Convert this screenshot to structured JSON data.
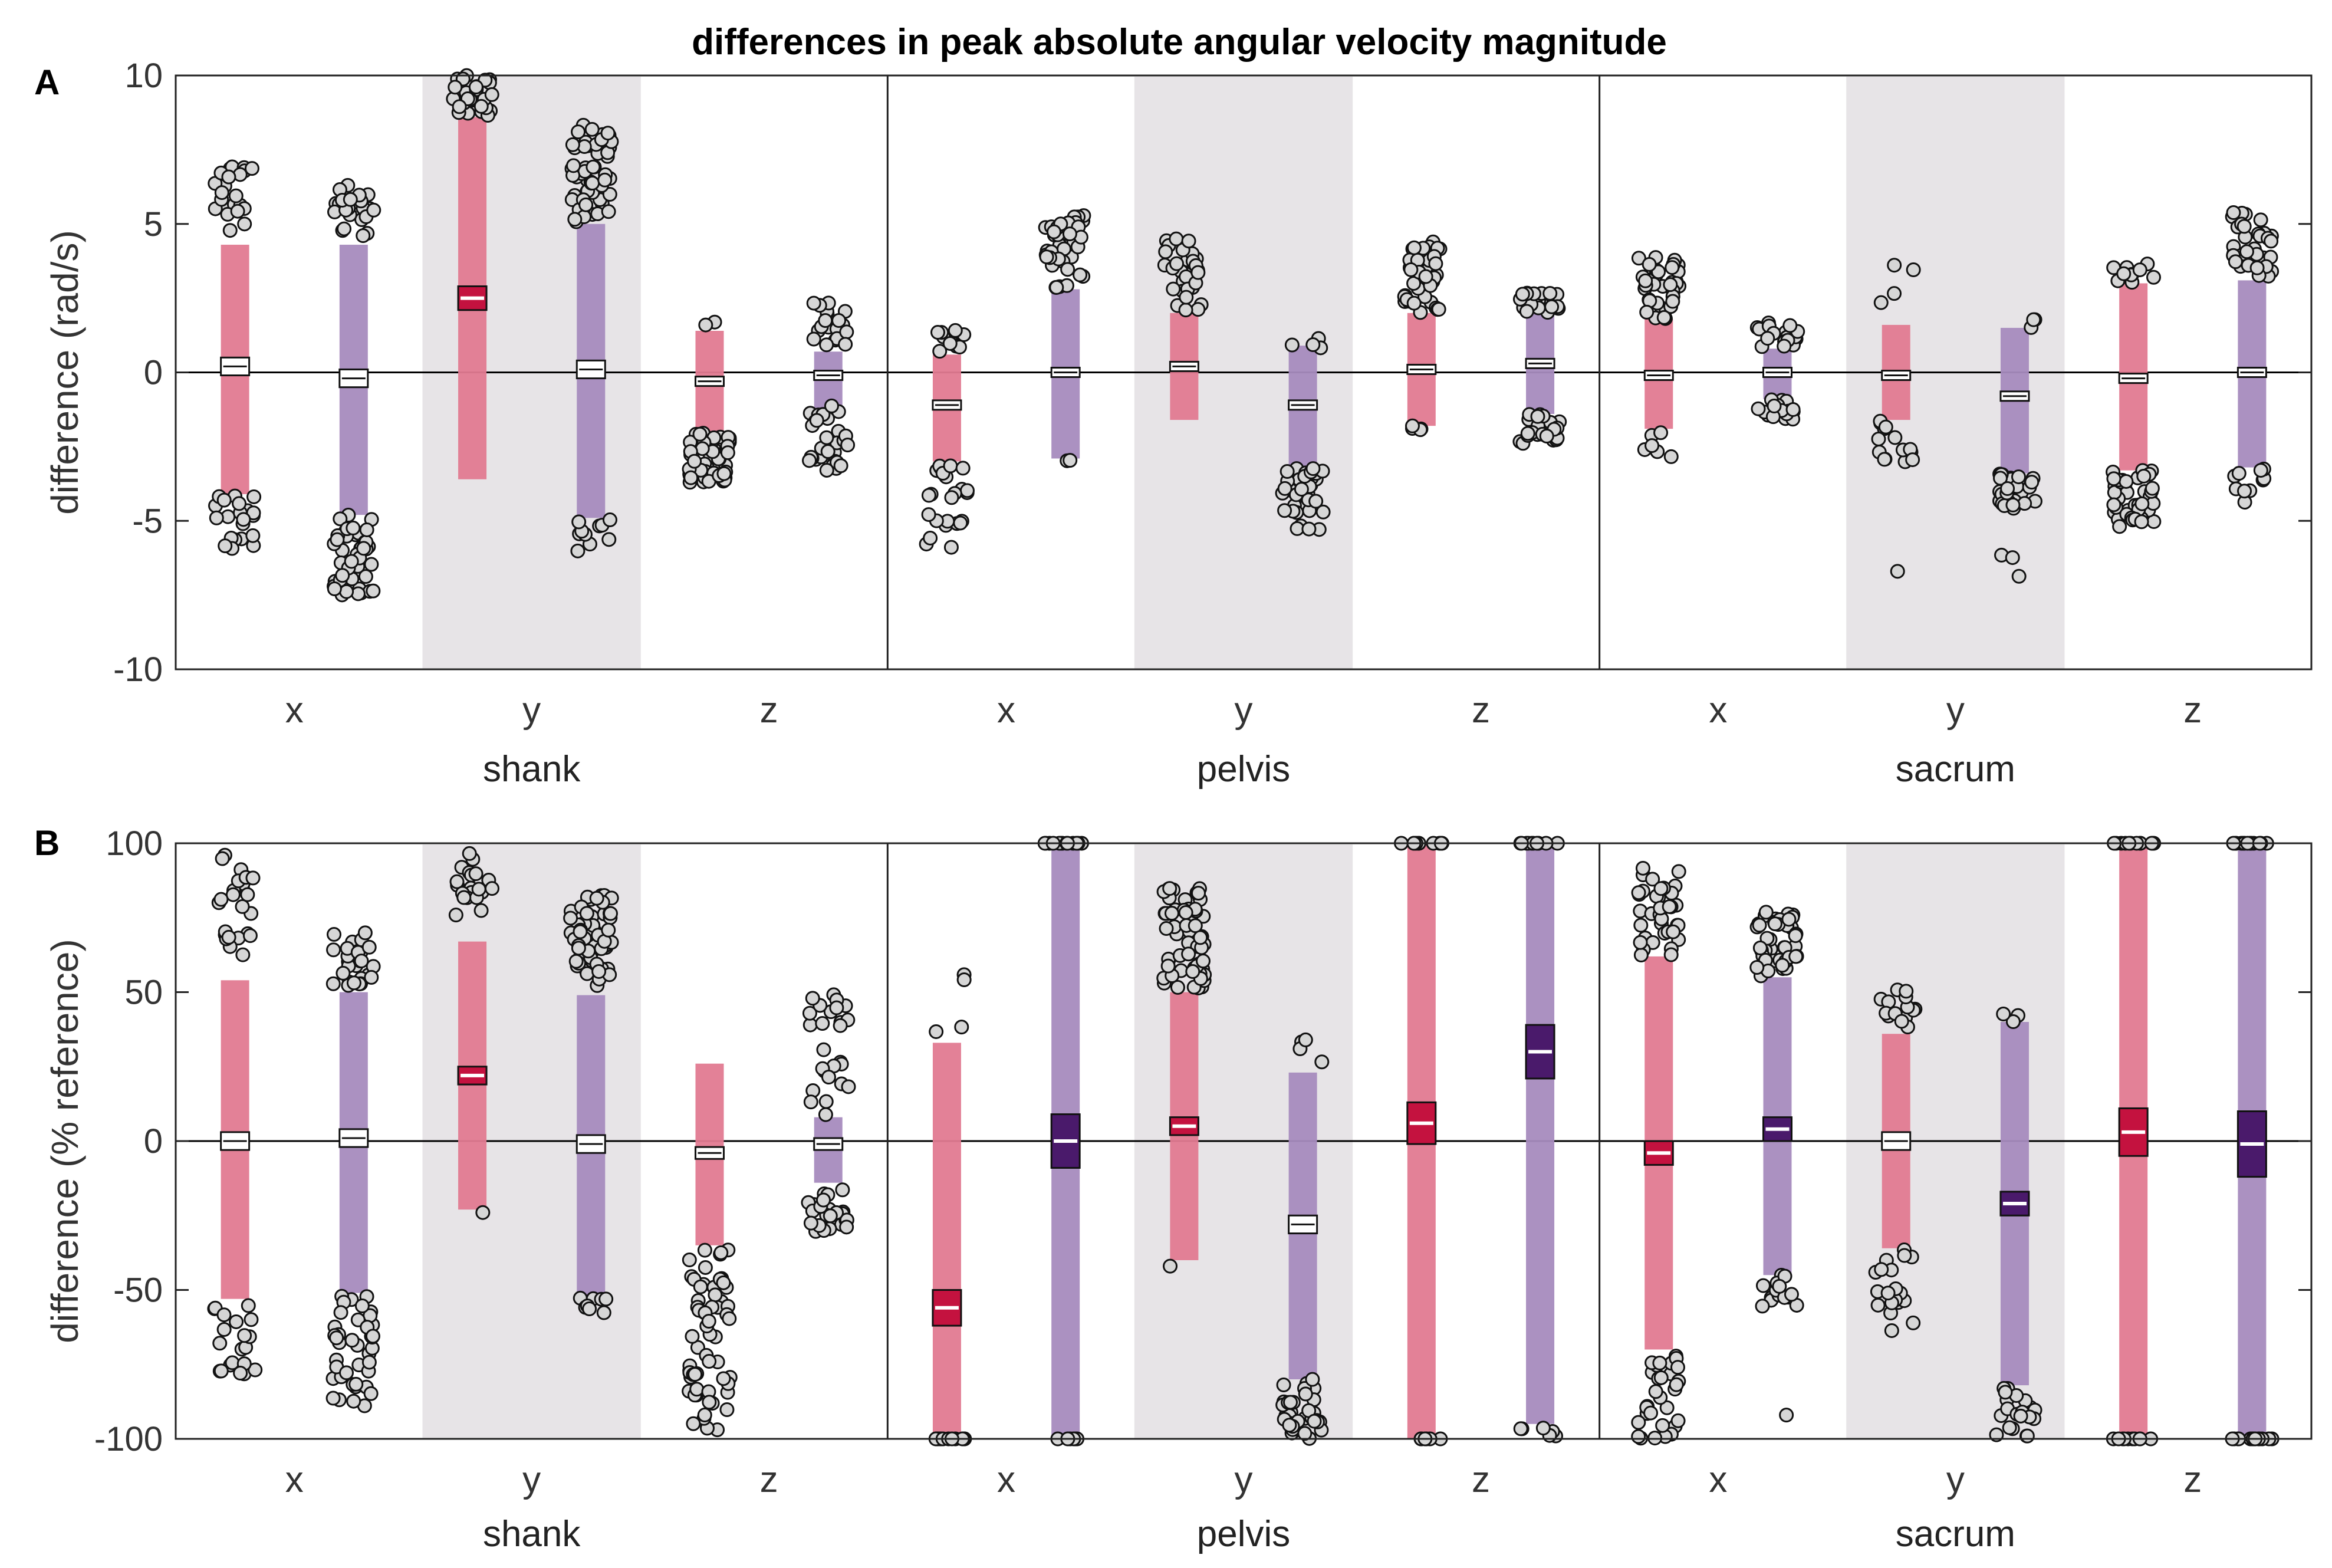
{
  "title": "differences in peak absolute angular velocity magnitude",
  "colors": {
    "pink_bar": "#E27A91",
    "purple_bar": "#A68BBE",
    "crimson_box": "#C4123F",
    "violet_box": "#4A1A6B",
    "shade": "#E7E4E7",
    "dot_fill": "#D6D6D6"
  },
  "chart_data": [
    {
      "type": "scatter",
      "panel": "A",
      "ylabel": "difference (rad/s)",
      "ylim": [
        -10,
        10
      ],
      "yticks": [
        -10,
        -5,
        0,
        5,
        10
      ],
      "yticklabels": [
        "-10",
        "-5",
        "0",
        "5",
        "10"
      ],
      "groups": [
        "shank",
        "pelvis",
        "sacrum"
      ],
      "axes": [
        "x",
        "y",
        "z"
      ],
      "shaded_axis": "y",
      "series": [
        {
          "group": "shank",
          "axis": "x",
          "color": "pink",
          "mean": 0.2,
          "ci": 0.3,
          "bar": [
            -4.1,
            4.3
          ],
          "box_style": "open",
          "clusters": [
            {
              "lo": 4.7,
              "hi": 7.0,
              "n": 22
            },
            {
              "lo": -6.0,
              "hi": -4.1,
              "n": 22
            }
          ]
        },
        {
          "group": "shank",
          "axis": "x",
          "color": "purple",
          "mean": -0.2,
          "ci": 0.3,
          "bar": [
            -4.8,
            4.3
          ],
          "box_style": "open",
          "clusters": [
            {
              "lo": 4.6,
              "hi": 6.3,
              "n": 24
            },
            {
              "lo": -7.5,
              "hi": -4.8,
              "n": 50
            }
          ]
        },
        {
          "group": "shank",
          "axis": "y",
          "color": "pink",
          "mean": 2.5,
          "ci": 0.4,
          "bar": [
            -3.6,
            8.6
          ],
          "box_style": "filled",
          "clusters": [
            {
              "lo": 8.6,
              "hi": 10.0,
              "n": 30
            }
          ]
        },
        {
          "group": "shank",
          "axis": "y",
          "color": "purple",
          "mean": 0.1,
          "ci": 0.3,
          "bar": [
            -4.9,
            5.0
          ],
          "box_style": "open",
          "clusters": [
            {
              "lo": 5.0,
              "hi": 8.4,
              "n": 55
            },
            {
              "lo": -6.2,
              "hi": -4.9,
              "n": 10
            }
          ]
        },
        {
          "group": "shank",
          "axis": "z",
          "color": "pink",
          "mean": -0.3,
          "ci": 0.15,
          "bar": [
            -2.0,
            1.4
          ],
          "box_style": "open",
          "clusters": [
            {
              "lo": 1.5,
              "hi": 1.9,
              "n": 2
            },
            {
              "lo": -3.8,
              "hi": -2.0,
              "n": 60
            }
          ]
        },
        {
          "group": "shank",
          "axis": "z",
          "color": "purple",
          "mean": -0.1,
          "ci": 0.15,
          "bar": [
            -1.2,
            0.7
          ],
          "box_style": "open",
          "clusters": [
            {
              "lo": 0.7,
              "hi": 2.4,
              "n": 20
            },
            {
              "lo": -3.3,
              "hi": -1.1,
              "n": 30
            }
          ]
        },
        {
          "group": "pelvis",
          "axis": "x",
          "color": "pink",
          "mean": -1.1,
          "ci": 0.15,
          "bar": [
            -3.0,
            0.6
          ],
          "box_style": "open",
          "clusters": [
            {
              "lo": 0.7,
              "hi": 2.0,
              "n": 10
            },
            {
              "lo": -6.0,
              "hi": -3.0,
              "n": 24
            }
          ]
        },
        {
          "group": "pelvis",
          "axis": "x",
          "color": "purple",
          "mean": 0.0,
          "ci": 0.15,
          "bar": [
            -2.9,
            2.8
          ],
          "box_style": "open",
          "clusters": [
            {
              "lo": 2.8,
              "hi": 5.3,
              "n": 42
            },
            {
              "lo": -3.0,
              "hi": -2.9,
              "n": 2
            }
          ]
        },
        {
          "group": "pelvis",
          "axis": "y",
          "color": "pink",
          "mean": 0.2,
          "ci": 0.15,
          "bar": [
            -1.6,
            2.0
          ],
          "box_style": "open",
          "clusters": [
            {
              "lo": 2.0,
              "hi": 4.7,
              "n": 30
            }
          ]
        },
        {
          "group": "pelvis",
          "axis": "y",
          "color": "purple",
          "mean": -1.1,
          "ci": 0.15,
          "bar": [
            -3.2,
            0.9
          ],
          "box_style": "open",
          "clusters": [
            {
              "lo": 0.8,
              "hi": 1.2,
              "n": 4
            },
            {
              "lo": -5.5,
              "hi": -3.2,
              "n": 38
            }
          ]
        },
        {
          "group": "pelvis",
          "axis": "z",
          "color": "pink",
          "mean": 0.1,
          "ci": 0.15,
          "bar": [
            -1.8,
            2.0
          ],
          "box_style": "open",
          "clusters": [
            {
              "lo": 2.0,
              "hi": 4.4,
              "n": 40
            },
            {
              "lo": -2.1,
              "hi": -1.8,
              "n": 4
            }
          ]
        },
        {
          "group": "pelvis",
          "axis": "z",
          "color": "purple",
          "mean": 0.3,
          "ci": 0.15,
          "bar": [
            -1.4,
            2.0
          ],
          "box_style": "open",
          "clusters": [
            {
              "lo": 2.0,
              "hi": 2.7,
              "n": 24
            },
            {
              "lo": -2.6,
              "hi": -1.4,
              "n": 26
            }
          ]
        },
        {
          "group": "sacrum",
          "axis": "x",
          "color": "pink",
          "mean": -0.1,
          "ci": 0.15,
          "bar": [
            -1.9,
            1.8
          ],
          "box_style": "open",
          "clusters": [
            {
              "lo": 1.8,
              "hi": 3.9,
              "n": 36
            },
            {
              "lo": -3.2,
              "hi": -1.9,
              "n": 6
            }
          ]
        },
        {
          "group": "sacrum",
          "axis": "x",
          "color": "purple",
          "mean": 0.0,
          "ci": 0.15,
          "bar": [
            -0.9,
            0.8
          ],
          "box_style": "open",
          "clusters": [
            {
              "lo": 0.8,
              "hi": 1.7,
              "n": 18
            },
            {
              "lo": -1.6,
              "hi": -0.9,
              "n": 22
            }
          ]
        },
        {
          "group": "sacrum",
          "axis": "y",
          "color": "pink",
          "mean": -0.1,
          "ci": 0.15,
          "bar": [
            -1.6,
            1.6
          ],
          "box_style": "open",
          "clusters": [
            {
              "lo": 1.8,
              "hi": 3.8,
              "n": 4
            },
            {
              "lo": -3.2,
              "hi": -1.6,
              "n": 14
            },
            {
              "lo": -6.7,
              "hi": -6.7,
              "n": 1
            }
          ]
        },
        {
          "group": "sacrum",
          "axis": "y",
          "color": "purple",
          "mean": -0.8,
          "ci": 0.15,
          "bar": [
            -3.4,
            1.5
          ],
          "box_style": "open",
          "clusters": [
            {
              "lo": 1.5,
              "hi": 2.0,
              "n": 4
            },
            {
              "lo": -4.6,
              "hi": -3.4,
              "n": 34
            },
            {
              "lo": -7.4,
              "hi": -5.8,
              "n": 3
            }
          ]
        },
        {
          "group": "sacrum",
          "axis": "z",
          "color": "pink",
          "mean": -0.2,
          "ci": 0.15,
          "bar": [
            -3.3,
            3.0
          ],
          "box_style": "open",
          "clusters": [
            {
              "lo": 3.0,
              "hi": 3.8,
              "n": 10
            },
            {
              "lo": -5.2,
              "hi": -3.3,
              "n": 44
            }
          ]
        },
        {
          "group": "sacrum",
          "axis": "z",
          "color": "purple",
          "mean": 0.0,
          "ci": 0.15,
          "bar": [
            -3.2,
            3.1
          ],
          "box_style": "open",
          "clusters": [
            {
              "lo": 3.2,
              "hi": 5.4,
              "n": 34
            },
            {
              "lo": -4.4,
              "hi": -3.2,
              "n": 10
            }
          ]
        }
      ]
    },
    {
      "type": "scatter",
      "panel": "B",
      "ylabel": "difference (% reference)",
      "ylim": [
        -100,
        100
      ],
      "yticks": [
        -100,
        -50,
        0,
        50,
        100
      ],
      "yticklabels": [
        "-100",
        "-50",
        "0",
        "50",
        "100"
      ],
      "groups": [
        "shank",
        "pelvis",
        "sacrum"
      ],
      "axes": [
        "x",
        "y",
        "z"
      ],
      "shaded_axis": "y",
      "series": [
        {
          "group": "shank",
          "axis": "x",
          "color": "pink",
          "mean": 0,
          "ci": 3,
          "bar": [
            -53,
            54
          ],
          "box_style": "open",
          "clusters": [
            {
              "lo": 55,
              "hi": 96,
              "n": 24
            },
            {
              "lo": -81,
              "hi": -55,
              "n": 20
            }
          ]
        },
        {
          "group": "shank",
          "axis": "x",
          "color": "purple",
          "mean": 1,
          "ci": 3,
          "bar": [
            -51,
            50
          ],
          "box_style": "open",
          "clusters": [
            {
              "lo": 52,
              "hi": 71,
              "n": 28
            },
            {
              "lo": -89,
              "hi": -51,
              "n": 40
            }
          ]
        },
        {
          "group": "shank",
          "axis": "y",
          "color": "pink",
          "mean": 22,
          "ci": 3,
          "bar": [
            -23,
            67
          ],
          "box_style": "filled",
          "clusters": [
            {
              "lo": 68,
              "hi": 98,
              "n": 20
            },
            {
              "lo": -24,
              "hi": -24,
              "n": 1
            }
          ]
        },
        {
          "group": "shank",
          "axis": "y",
          "color": "purple",
          "mean": -1,
          "ci": 3,
          "bar": [
            -52,
            49
          ],
          "box_style": "open",
          "clusters": [
            {
              "lo": 52,
              "hi": 83,
              "n": 60
            },
            {
              "lo": -59,
              "hi": -52,
              "n": 8
            }
          ]
        },
        {
          "group": "shank",
          "axis": "z",
          "color": "pink",
          "mean": -4,
          "ci": 2,
          "bar": [
            -35,
            26
          ],
          "box_style": "open",
          "clusters": [
            {
              "lo": -100,
              "hi": -35,
              "n": 60
            }
          ]
        },
        {
          "group": "shank",
          "axis": "z",
          "color": "purple",
          "mean": -1,
          "ci": 2,
          "bar": [
            -14,
            8
          ],
          "box_style": "open",
          "clusters": [
            {
              "lo": 8,
              "hi": 50,
              "n": 26
            },
            {
              "lo": -31,
              "hi": -14,
              "n": 24
            }
          ]
        },
        {
          "group": "pelvis",
          "axis": "x",
          "color": "pink",
          "mean": -56,
          "ci": 6,
          "bar": [
            -100,
            33
          ],
          "box_style": "filled",
          "clusters": [
            {
              "lo": 36,
              "hi": 56,
              "n": 4
            },
            {
              "lo": -100,
              "hi": -100,
              "n": 14
            }
          ]
        },
        {
          "group": "pelvis",
          "axis": "x",
          "color": "purple",
          "mean": 0,
          "ci": 9,
          "bar": [
            -100,
            100
          ],
          "box_style": "filled",
          "clusters": [
            {
              "lo": 100,
              "hi": 100,
              "n": 14
            },
            {
              "lo": -100,
              "hi": -100,
              "n": 6
            }
          ]
        },
        {
          "group": "pelvis",
          "axis": "y",
          "color": "pink",
          "mean": 5,
          "ci": 3,
          "bar": [
            -40,
            50
          ],
          "box_style": "filled",
          "clusters": [
            {
              "lo": 50,
              "hi": 85,
              "n": 60
            },
            {
              "lo": -42,
              "hi": -42,
              "n": 1
            }
          ]
        },
        {
          "group": "pelvis",
          "axis": "y",
          "color": "purple",
          "mean": -28,
          "ci": 3,
          "bar": [
            -80,
            23
          ],
          "box_style": "open",
          "clusters": [
            {
              "lo": 24,
              "hi": 35,
              "n": 4
            },
            {
              "lo": -100,
              "hi": -80,
              "n": 36
            }
          ]
        },
        {
          "group": "pelvis",
          "axis": "z",
          "color": "pink",
          "mean": 6,
          "ci": 7,
          "bar": [
            -100,
            100
          ],
          "box_style": "filled",
          "clusters": [
            {
              "lo": 100,
              "hi": 100,
              "n": 12
            },
            {
              "lo": -100,
              "hi": -100,
              "n": 6
            }
          ]
        },
        {
          "group": "pelvis",
          "axis": "z",
          "color": "purple",
          "mean": 30,
          "ci": 9,
          "bar": [
            -95,
            100
          ],
          "box_style": "filled",
          "clusters": [
            {
              "lo": 100,
              "hi": 100,
              "n": 12
            },
            {
              "lo": -100,
              "hi": -96,
              "n": 6
            }
          ]
        },
        {
          "group": "sacrum",
          "axis": "x",
          "color": "pink",
          "mean": -4,
          "ci": 4,
          "bar": [
            -70,
            62
          ],
          "box_style": "filled",
          "clusters": [
            {
              "lo": 62,
              "hi": 92,
              "n": 36
            },
            {
              "lo": -100,
              "hi": -70,
              "n": 30
            }
          ]
        },
        {
          "group": "sacrum",
          "axis": "x",
          "color": "purple",
          "mean": 4,
          "ci": 4,
          "bar": [
            -45,
            55
          ],
          "box_style": "filled",
          "clusters": [
            {
              "lo": 55,
              "hi": 77,
              "n": 44
            },
            {
              "lo": -57,
              "hi": -45,
              "n": 14
            },
            {
              "lo": -92,
              "hi": -92,
              "n": 1
            }
          ]
        },
        {
          "group": "sacrum",
          "axis": "y",
          "color": "pink",
          "mean": 0,
          "ci": 3,
          "bar": [
            -36,
            36
          ],
          "box_style": "open",
          "clusters": [
            {
              "lo": 38,
              "hi": 51,
              "n": 14
            },
            {
              "lo": -66,
              "hi": -36,
              "n": 20
            }
          ]
        },
        {
          "group": "sacrum",
          "axis": "y",
          "color": "purple",
          "mean": -21,
          "ci": 4,
          "bar": [
            -82,
            40
          ],
          "box_style": "filled",
          "clusters": [
            {
              "lo": 40,
              "hi": 44,
              "n": 3
            },
            {
              "lo": -100,
              "hi": -83,
              "n": 22
            }
          ]
        },
        {
          "group": "sacrum",
          "axis": "z",
          "color": "pink",
          "mean": 3,
          "ci": 8,
          "bar": [
            -100,
            100
          ],
          "box_style": "filled",
          "clusters": [
            {
              "lo": 100,
              "hi": 100,
              "n": 12
            },
            {
              "lo": -100,
              "hi": -100,
              "n": 10
            }
          ]
        },
        {
          "group": "sacrum",
          "axis": "z",
          "color": "purple",
          "mean": -1,
          "ci": 11,
          "bar": [
            -100,
            100
          ],
          "box_style": "filled",
          "clusters": [
            {
              "lo": 100,
              "hi": 100,
              "n": 14
            },
            {
              "lo": -100,
              "hi": -100,
              "n": 14
            }
          ]
        }
      ]
    }
  ]
}
